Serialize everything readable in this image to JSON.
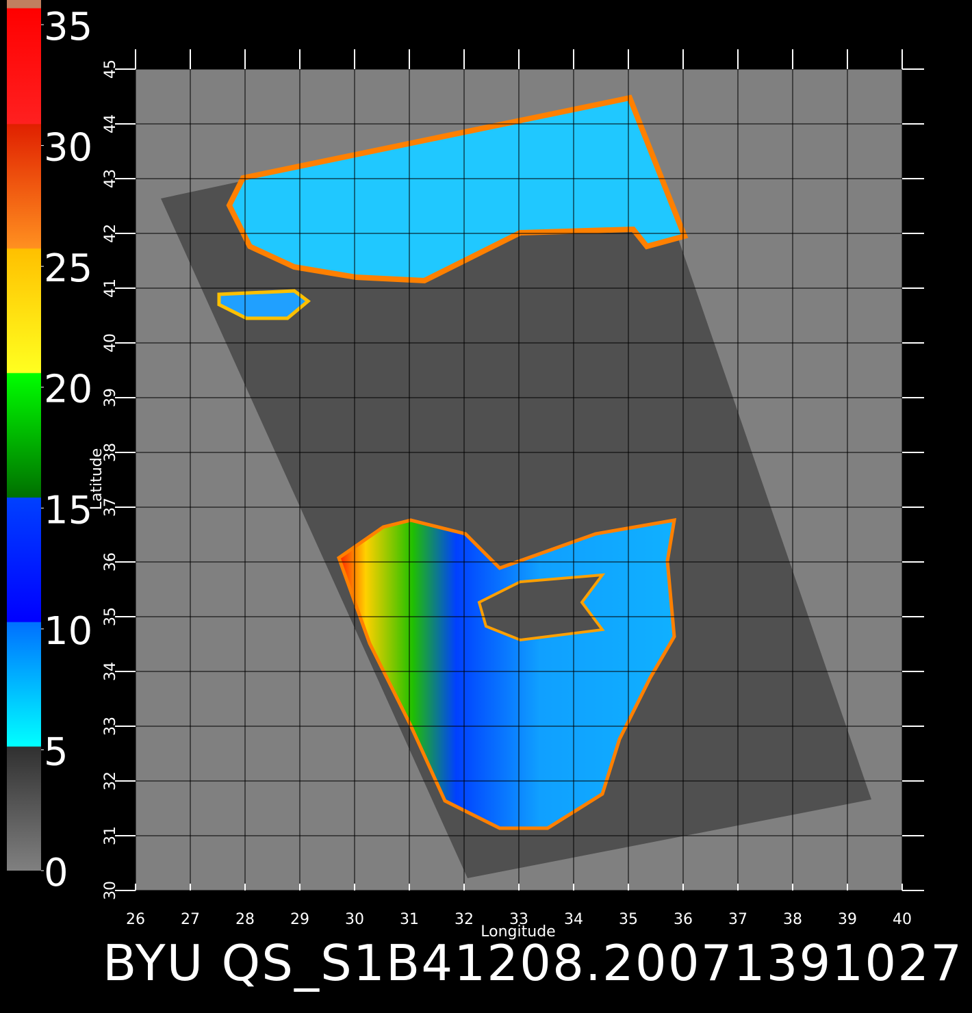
{
  "map": {
    "title": "BYU  QS_S1B41208.20071391027",
    "x_label": "Longitude",
    "y_label": "Latitude",
    "xlim": [
      26,
      40
    ],
    "ylim": [
      30,
      45
    ],
    "xticks": [
      26,
      27,
      28,
      29,
      30,
      31,
      32,
      33,
      34,
      35,
      36,
      37,
      38,
      39,
      40
    ],
    "yticks": [
      30,
      31,
      32,
      33,
      34,
      35,
      36,
      37,
      38,
      39,
      40,
      41,
      42,
      43,
      44,
      45
    ],
    "colorbar": {
      "lim": [
        0,
        35
      ],
      "ticks": [
        0,
        5,
        10,
        15,
        20,
        25,
        30,
        35
      ]
    }
  }
}
